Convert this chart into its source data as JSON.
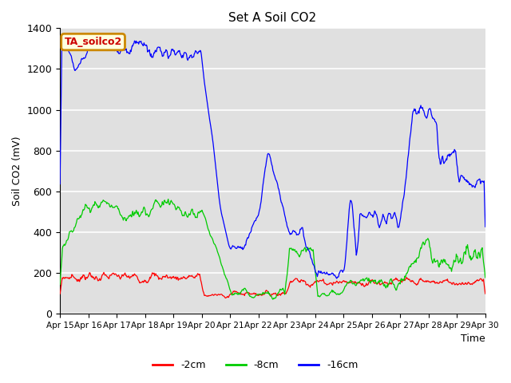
{
  "title": "Set A Soil CO2",
  "ylabel": "Soil CO2 (mV)",
  "xlabel": "Time",
  "ylim": [
    0,
    1400
  ],
  "legend_label": "TA_soilco2",
  "series_labels": [
    "-2cm",
    "-8cm",
    "-16cm"
  ],
  "series_colors": [
    "#ff0000",
    "#00cc00",
    "#0000ff"
  ],
  "bg_color": "#e0e0e0",
  "x_tick_labels": [
    "Apr 15",
    "Apr 16",
    "Apr 17",
    "Apr 18",
    "Apr 19",
    "Apr 20",
    "Apr 21",
    "Apr 22",
    "Apr 23",
    "Apr 24",
    "Apr 25",
    "Apr 26",
    "Apr 27",
    "Apr 28",
    "Apr 29",
    "Apr 30"
  ],
  "n_ticks": 16,
  "grid_color": "#c8c8c8"
}
